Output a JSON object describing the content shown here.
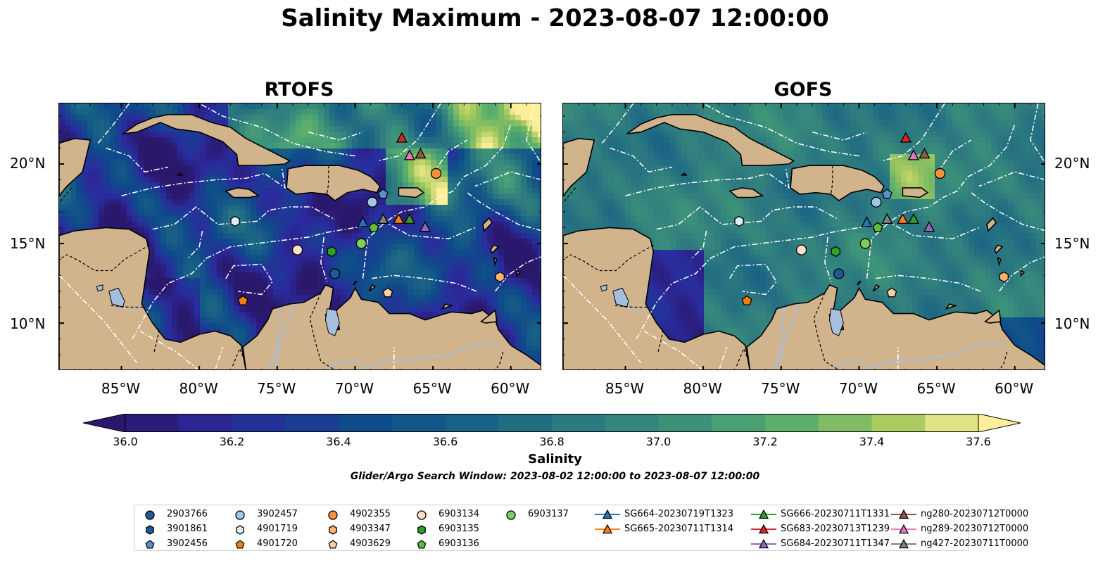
{
  "title": "Salinity Maximum - 2023-08-07 12:00:00",
  "panels": [
    {
      "id": "rtofs",
      "title": "RTOFS"
    },
    {
      "id": "gofs",
      "title": "GOFS"
    }
  ],
  "map": {
    "lon_range": [
      -89,
      -58
    ],
    "lat_range": [
      7,
      23.8
    ],
    "lon_ticks": [
      "85°W",
      "80°W",
      "75°W",
      "70°W",
      "65°W",
      "60°W"
    ],
    "lon_tick_values": [
      -85,
      -80,
      -75,
      -70,
      -65,
      -60
    ],
    "lat_ticks": [
      "20°N",
      "15°N",
      "10°N"
    ],
    "lat_tick_values": [
      20,
      15,
      10
    ],
    "land_color": "#d2b48c",
    "water_color": "#a5bfdd"
  },
  "colorbar": {
    "label": "Salinity",
    "vmin": 36.0,
    "vmax": 37.6,
    "step": 0.1,
    "ticks": [
      "36.0",
      "36.2",
      "36.4",
      "36.6",
      "36.8",
      "37.0",
      "37.2",
      "37.4",
      "37.6"
    ],
    "tick_values": [
      36.0,
      36.2,
      36.4,
      36.6,
      36.8,
      37.0,
      37.2,
      37.4,
      37.6
    ],
    "extend": "both",
    "colormap": "haline"
  },
  "note": "Glider/Argo Search Window: 2023-08-02 12:00:00 to 2023-08-07 12:00:00",
  "platforms": [
    {
      "name": "2903766",
      "marker": "circle",
      "color": "#1f5a96",
      "lon": -71.3,
      "lat": 13.1
    },
    {
      "name": "3901861",
      "marker": "hexagon",
      "color": "#1f5a96",
      "lon": -71.3,
      "lat": 13.1,
      "hidden": true
    },
    {
      "name": "3902456",
      "marker": "pentagon",
      "color": "#5a8fc8",
      "lon": -68.2,
      "lat": 18.1
    },
    {
      "name": "3902457",
      "marker": "circle",
      "color": "#9ec7e8",
      "lon": -68.9,
      "lat": 17.6
    },
    {
      "name": "4901719",
      "marker": "hexagon",
      "color": "#dceefa",
      "lon": -77.7,
      "lat": 16.4
    },
    {
      "name": "4901720",
      "marker": "pentagon",
      "color": "#f57f0e",
      "lon": -77.2,
      "lat": 11.4
    },
    {
      "name": "4902355",
      "marker": "circle",
      "color": "#f7923a",
      "lon": -64.8,
      "lat": 19.4
    },
    {
      "name": "4903347",
      "marker": "hexagon",
      "color": "#f8b46b",
      "lon": -60.7,
      "lat": 12.9
    },
    {
      "name": "4903629",
      "marker": "pentagon",
      "color": "#fdd0a2",
      "lon": -67.9,
      "lat": 11.9
    },
    {
      "name": "6903134",
      "marker": "circle",
      "color": "#fde0c8",
      "lon": -73.7,
      "lat": 14.6
    },
    {
      "name": "6903135",
      "marker": "hexagon",
      "color": "#2ca02c",
      "lon": -71.5,
      "lat": 14.5
    },
    {
      "name": "6903136",
      "marker": "pentagon",
      "color": "#5fbf3c",
      "lon": -68.8,
      "lat": 16.0
    },
    {
      "name": "6903137",
      "marker": "circle",
      "color": "#7fcd5a",
      "lon": -69.6,
      "lat": 15.0
    },
    {
      "name": "SG664-20230719T1323",
      "marker": "triangle",
      "color": "#1f77b4",
      "lon": -69.5,
      "lat": 16.3,
      "line": true
    },
    {
      "name": "SG665-20230711T1314",
      "marker": "triangle",
      "color": "#ff7f0e",
      "lon": -67.2,
      "lat": 16.5,
      "line": true
    },
    {
      "name": "SG666-20230711T1331",
      "marker": "triangle",
      "color": "#2ca02c",
      "lon": -66.5,
      "lat": 16.5,
      "line": true
    },
    {
      "name": "SG683-20230713T1239",
      "marker": "triangle",
      "color": "#d62728",
      "lon": -67.0,
      "lat": 21.6,
      "line": true
    },
    {
      "name": "SG684-20230711T1347",
      "marker": "triangle",
      "color": "#9467bd",
      "lon": -65.5,
      "lat": 16.0,
      "line": true
    },
    {
      "name": "ng280-20230712T0000",
      "marker": "triangle",
      "color": "#8c564b",
      "lon": -65.8,
      "lat": 20.6,
      "line": true
    },
    {
      "name": "ng289-20230712T0000",
      "marker": "triangle",
      "color": "#e377c2",
      "lon": -66.5,
      "lat": 20.5,
      "line": true
    },
    {
      "name": "ng427-20230711T0000",
      "marker": "triangle",
      "color": "#7f7f7f",
      "lon": -68.2,
      "lat": 16.5,
      "line": true
    }
  ]
}
